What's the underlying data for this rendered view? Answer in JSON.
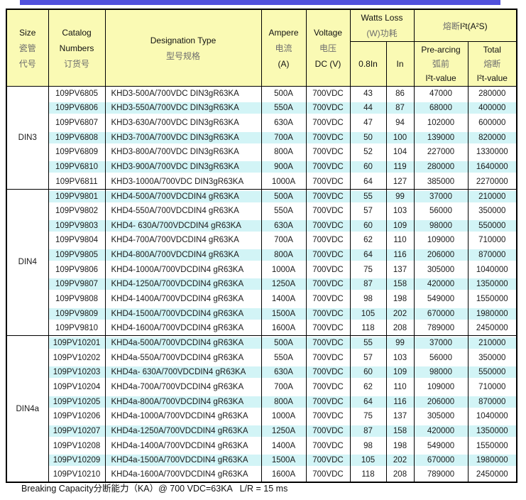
{
  "page": {
    "top_bar_color": "#5151dc",
    "header_bg_color": "#fafab4",
    "zebra_band_color": "#d2f4f6"
  },
  "table": {
    "header": {
      "size_en": "Size",
      "size_cn1": "瓷管",
      "size_cn2": "代号",
      "catalog_en1": "Catalog",
      "catalog_en2": "Numbers",
      "catalog_cn": "订货号",
      "designation_en": "Designation Type",
      "designation_cn": "型号规格",
      "ampere_en": "Ampere",
      "ampere_cn": "电流",
      "ampere_unit": "(A)",
      "voltage_en": "Voltage",
      "voltage_cn": "电压",
      "voltage_unit": "DC (V)",
      "watts_en": "Watts Loss",
      "watts_cn": "(W)功耗",
      "watts_sub_08": "0.8In",
      "watts_sub_in": "In",
      "i2t_cn": "熔断",
      "i2t_en": "I²t(A²S)",
      "prearcing_en": "Pre-arcing",
      "prearcing_cn": "弧前",
      "prearcing_sub": "I²t-value",
      "total_en": "Total",
      "total_cn": "熔断",
      "total_sub": "I²t-value"
    },
    "sections": [
      {
        "size": "DIN3",
        "rows": [
          {
            "catalog": "109PV6805",
            "designation": "KHD3-500A/700VDC DIN3gR63KA",
            "ampere": "500A",
            "voltage": "700VDC",
            "watts_08": "43",
            "watts_in": "86",
            "prearcing": "47000",
            "total": "280000"
          },
          {
            "catalog": "109PV6806",
            "designation": "KHD3-550A/700VDC DIN3gR63KA",
            "ampere": "550A",
            "voltage": "700VDC",
            "watts_08": "44",
            "watts_in": "87",
            "prearcing": "68000",
            "total": "400000"
          },
          {
            "catalog": "109PV6807",
            "designation": "KHD3-630A/700VDC DIN3gR63KA",
            "ampere": "630A",
            "voltage": "700VDC",
            "watts_08": "47",
            "watts_in": "94",
            "prearcing": "102000",
            "total": "600000"
          },
          {
            "catalog": "109PV6808",
            "designation": "KHD3-700A/700VDC DIN3gR63KA",
            "ampere": "700A",
            "voltage": "700VDC",
            "watts_08": "50",
            "watts_in": "100",
            "prearcing": "139000",
            "total": "820000"
          },
          {
            "catalog": "109PV6809",
            "designation": "KHD3-800A/700VDC DIN3gR63KA",
            "ampere": "800A",
            "voltage": "700VDC",
            "watts_08": "52",
            "watts_in": "104",
            "prearcing": "227000",
            "total": "1330000"
          },
          {
            "catalog": "109PV6810",
            "designation": "KHD3-900A/700VDC DIN3gR63KA",
            "ampere": "900A",
            "voltage": "700VDC",
            "watts_08": "60",
            "watts_in": "119",
            "prearcing": "280000",
            "total": "1640000"
          },
          {
            "catalog": "109PV6811",
            "designation": "KHD3-1000A/700VDC DIN3gR63KA",
            "ampere": "1000A",
            "voltage": "700VDC",
            "watts_08": "64",
            "watts_in": "127",
            "prearcing": "385000",
            "total": "2270000"
          }
        ]
      },
      {
        "size": "DIN4",
        "rows": [
          {
            "catalog": "109PV9801",
            "designation": "KHD4-500A/700VDCDIN4 gR63KA",
            "ampere": "500A",
            "voltage": "700VDC",
            "watts_08": "55",
            "watts_in": "99",
            "prearcing": "37000",
            "total": "210000"
          },
          {
            "catalog": "109PV9802",
            "designation": "KHD4-550A/700VDCDIN4 gR63KA",
            "ampere": "550A",
            "voltage": "700VDC",
            "watts_08": "57",
            "watts_in": "103",
            "prearcing": "56000",
            "total": "350000"
          },
          {
            "catalog": "109PV9803",
            "designation": "KHD4- 630A/700VDCDIN4 gR63KA",
            "ampere": "630A",
            "voltage": "700VDC",
            "watts_08": "60",
            "watts_in": "109",
            "prearcing": "98000",
            "total": "550000"
          },
          {
            "catalog": "109PV9804",
            "designation": "KHD4-700A/700VDCDIN4 gR63KA",
            "ampere": "700A",
            "voltage": "700VDC",
            "watts_08": "62",
            "watts_in": "110",
            "prearcing": "109000",
            "total": "710000"
          },
          {
            "catalog": "109PV9805",
            "designation": "KHD4-800A/700VDCDIN4 gR63KA",
            "ampere": "800A",
            "voltage": "700VDC",
            "watts_08": "64",
            "watts_in": "116",
            "prearcing": "206000",
            "total": "870000"
          },
          {
            "catalog": "109PV9806",
            "designation": "KHD4-1000A/700VDCDIN4 gR63KA",
            "ampere": "1000A",
            "voltage": "700VDC",
            "watts_08": "75",
            "watts_in": "137",
            "prearcing": "305000",
            "total": "1040000"
          },
          {
            "catalog": "109PV9807",
            "designation": "KHD4-1250A/700VDCDIN4 gR63KA",
            "ampere": "1250A",
            "voltage": "700VDC",
            "watts_08": "87",
            "watts_in": "158",
            "prearcing": "420000",
            "total": "1350000"
          },
          {
            "catalog": "109PV9808",
            "designation": "KHD4-1400A/700VDCDIN4 gR63KA",
            "ampere": "1400A",
            "voltage": "700VDC",
            "watts_08": "98",
            "watts_in": "198",
            "prearcing": "549000",
            "total": "1550000"
          },
          {
            "catalog": "109PV9809",
            "designation": "KHD4-1500A/700VDCDIN4 gR63KA",
            "ampere": "1500A",
            "voltage": "700VDC",
            "watts_08": "105",
            "watts_in": "202",
            "prearcing": "670000",
            "total": "1980000"
          },
          {
            "catalog": "109PV9810",
            "designation": "KHD4-1600A/700VDCDIN4 gR63KA",
            "ampere": "1600A",
            "voltage": "700VDC",
            "watts_08": "118",
            "watts_in": "208",
            "prearcing": "789000",
            "total": "2450000"
          }
        ]
      },
      {
        "size": "DIN4a",
        "rows": [
          {
            "catalog": "109PV10201",
            "designation": "KHD4a-500A/700VDCDIN4 gR63KA",
            "ampere": "500A",
            "voltage": "700VDC",
            "watts_08": "55",
            "watts_in": "99",
            "prearcing": "37000",
            "total": "210000"
          },
          {
            "catalog": "109PV10202",
            "designation": "KHD4a-550A/700VDCDIN4 gR63KA",
            "ampere": "550A",
            "voltage": "700VDC",
            "watts_08": "57",
            "watts_in": "103",
            "prearcing": "56000",
            "total": "350000"
          },
          {
            "catalog": "109PV10203",
            "designation": "KHD4a- 630A/700VDCDIN4 gR63KA",
            "ampere": "630A",
            "voltage": "700VDC",
            "watts_08": "60",
            "watts_in": "109",
            "prearcing": "98000",
            "total": "550000"
          },
          {
            "catalog": "109PV10204",
            "designation": "KHD4a-700A/700VDCDIN4 gR63KA",
            "ampere": "700A",
            "voltage": "700VDC",
            "watts_08": "62",
            "watts_in": "110",
            "prearcing": "109000",
            "total": "710000"
          },
          {
            "catalog": "109PV10205",
            "designation": "KHD4a-800A/700VDCDIN4 gR63KA",
            "ampere": "800A",
            "voltage": "700VDC",
            "watts_08": "64",
            "watts_in": "116",
            "prearcing": "206000",
            "total": "870000"
          },
          {
            "catalog": "109PV10206",
            "designation": "KHD4a-1000A/700VDCDIN4 gR63KA",
            "ampere": "1000A",
            "voltage": "700VDC",
            "watts_08": "75",
            "watts_in": "137",
            "prearcing": "305000",
            "total": "1040000"
          },
          {
            "catalog": "109PV10207",
            "designation": "KHD4a-1250A/700VDCDIN4 gR63KA",
            "ampere": "1250A",
            "voltage": "700VDC",
            "watts_08": "87",
            "watts_in": "158",
            "prearcing": "420000",
            "total": "1350000"
          },
          {
            "catalog": "109PV10208",
            "designation": "KHD4a-1400A/700VDCDIN4 gR63KA",
            "ampere": "1400A",
            "voltage": "700VDC",
            "watts_08": "98",
            "watts_in": "198",
            "prearcing": "549000",
            "total": "1550000"
          },
          {
            "catalog": "109PV10209",
            "designation": "KHD4a-1500A/700VDCDIN4 gR63KA",
            "ampere": "1500A",
            "voltage": "700VDC",
            "watts_08": "105",
            "watts_in": "202",
            "prearcing": "670000",
            "total": "1980000"
          },
          {
            "catalog": "109PV10210",
            "designation": "KHD4a-1600A/700VDCDIN4 gR63KA",
            "ampere": "1600A",
            "voltage": "700VDC",
            "watts_08": "118",
            "watts_in": "208",
            "prearcing": "789000",
            "total": "2450000"
          }
        ]
      }
    ]
  },
  "footer": {
    "note": "Breaking Capacity分断能力（KA）@ 700 VDC=63KA   L/R = 15 ms"
  }
}
